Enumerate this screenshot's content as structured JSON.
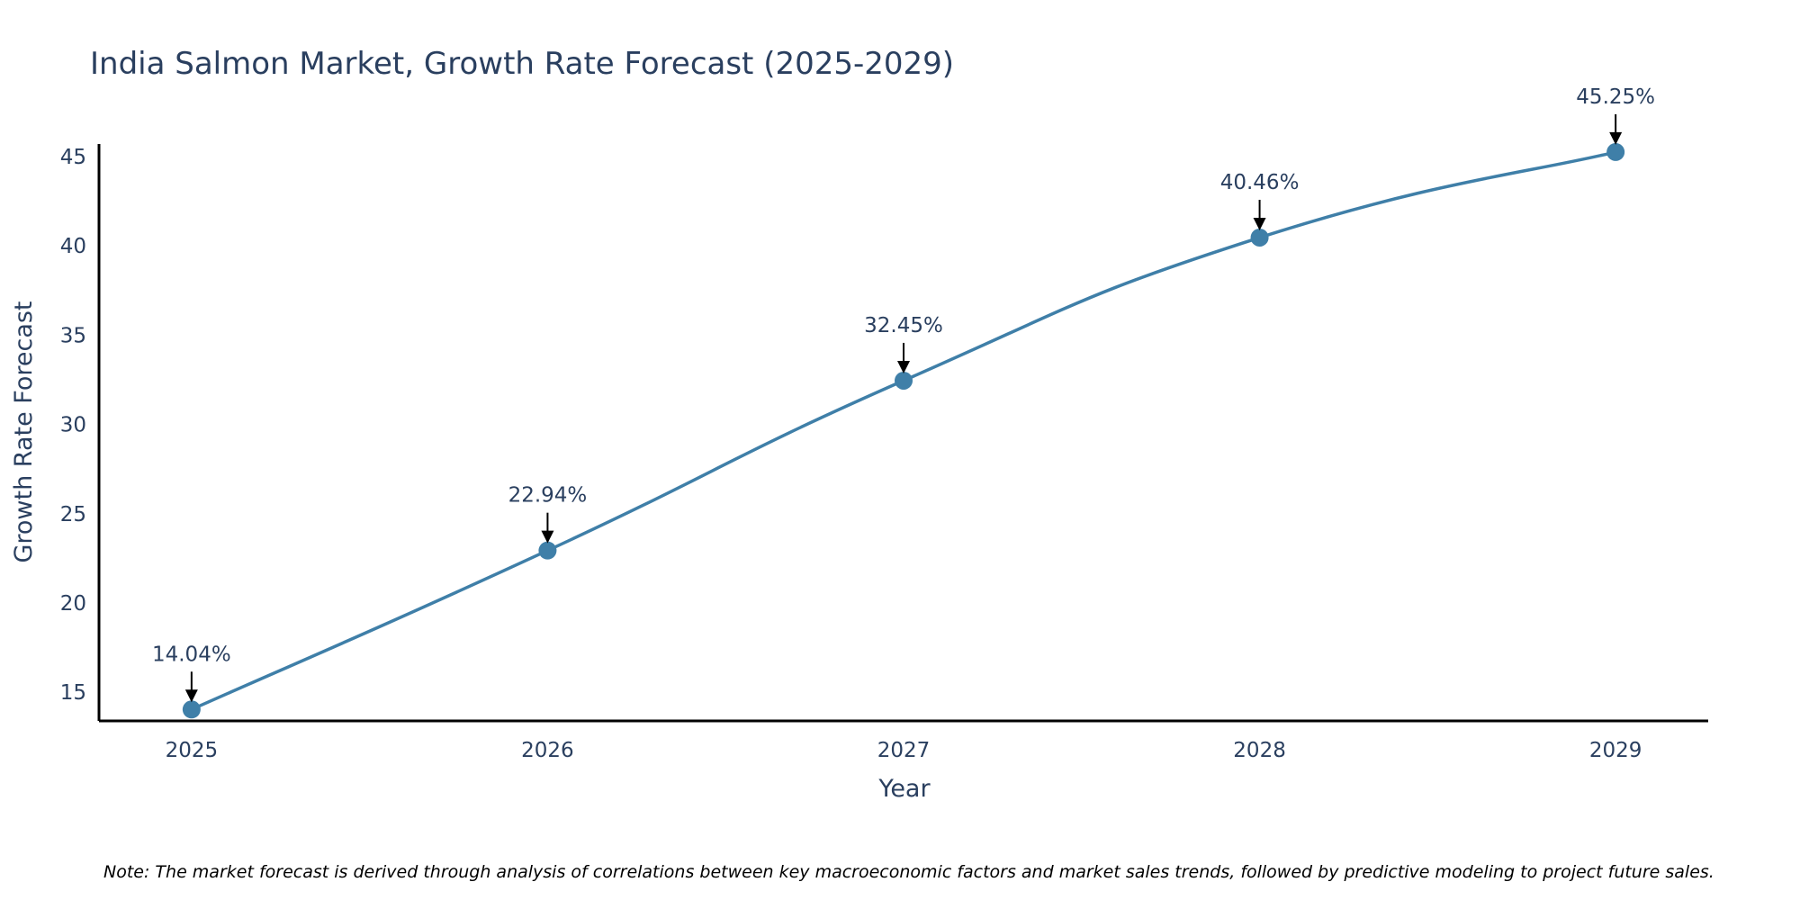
{
  "chart_data": {
    "type": "line",
    "title": "India Salmon Market, Growth Rate Forecast (2025-2029)",
    "xlabel": "Year",
    "ylabel": "Growth Rate Forecast",
    "categories": [
      "2025",
      "2026",
      "2027",
      "2028",
      "2029"
    ],
    "values": [
      14.04,
      22.94,
      32.45,
      40.46,
      45.25
    ],
    "data_labels": [
      "14.04%",
      "22.94%",
      "32.45%",
      "40.46%",
      "45.25%"
    ],
    "y_ticks": [
      15,
      20,
      25,
      30,
      35,
      40,
      45
    ],
    "ylim": [
      13.4,
      45.7
    ],
    "xlim": [
      2024.74,
      2029.26
    ],
    "grid": false,
    "legend": "none",
    "line_color": "#3f7fa8",
    "marker_color": "#3f7fa8",
    "note": "Note: The market forecast is derived through analysis of correlations between key macroeconomic factors and market sales trends, followed by predictive modeling to project future sales."
  }
}
